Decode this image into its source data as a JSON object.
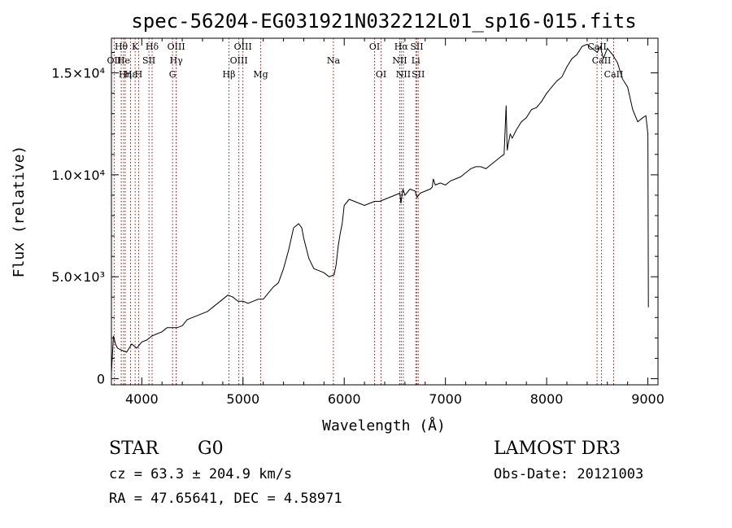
{
  "chart_data": {
    "type": "line",
    "title": "spec-56204-EG031921N032212L01_sp16-015.fits",
    "xlabel": "Wavelength (Å)",
    "ylabel": "Flux (relative)",
    "xlim": [
      3700,
      9100
    ],
    "ylim": [
      -300,
      16700
    ],
    "x_ticks": [
      {
        "value": 4000,
        "label": "4000"
      },
      {
        "value": 5000,
        "label": "5000"
      },
      {
        "value": 6000,
        "label": "6000"
      },
      {
        "value": 7000,
        "label": "7000"
      },
      {
        "value": 8000,
        "label": "8000"
      },
      {
        "value": 9000,
        "label": "9000"
      }
    ],
    "y_ticks": [
      {
        "value": 0,
        "label": "0"
      },
      {
        "value": 5000,
        "label": "5.0×10³"
      },
      {
        "value": 10000,
        "label": "1.0×10⁴"
      },
      {
        "value": 15000,
        "label": "1.5×10⁴"
      }
    ],
    "series": [
      {
        "name": "spectrum",
        "x": [
          3700,
          3720,
          3740,
          3760,
          3800,
          3850,
          3900,
          3950,
          4000,
          4050,
          4100,
          4150,
          4200,
          4250,
          4300,
          4350,
          4400,
          4450,
          4500,
          4550,
          4600,
          4650,
          4700,
          4750,
          4800,
          4850,
          4900,
          4950,
          5000,
          5050,
          5100,
          5150,
          5200,
          5250,
          5300,
          5350,
          5400,
          5450,
          5500,
          5550,
          5580,
          5600,
          5650,
          5700,
          5750,
          5800,
          5850,
          5900,
          5920,
          5940,
          5960,
          5980,
          6000,
          6050,
          6100,
          6150,
          6200,
          6250,
          6300,
          6350,
          6400,
          6450,
          6500,
          6550,
          6560,
          6580,
          6600,
          6650,
          6700,
          6720,
          6750,
          6800,
          6850,
          6870,
          6880,
          6900,
          6950,
          7000,
          7050,
          7100,
          7150,
          7200,
          7250,
          7300,
          7350,
          7400,
          7450,
          7500,
          7550,
          7580,
          7600,
          7610,
          7620,
          7640,
          7660,
          7700,
          7750,
          7800,
          7850,
          7900,
          7950,
          8000,
          8050,
          8100,
          8150,
          8200,
          8250,
          8300,
          8350,
          8400,
          8450,
          8500,
          8530,
          8560,
          8600,
          8650,
          8700,
          8750,
          8800,
          8850,
          8900,
          8950,
          8980,
          9000,
          9005
        ],
        "y": [
          300,
          2100,
          1700,
          1500,
          1400,
          1300,
          1700,
          1500,
          1800,
          1900,
          2100,
          2200,
          2300,
          2500,
          2500,
          2500,
          2600,
          2900,
          3000,
          3100,
          3200,
          3300,
          3500,
          3700,
          3900,
          4100,
          4000,
          3800,
          3800,
          3700,
          3800,
          3900,
          3900,
          4200,
          4500,
          4700,
          5400,
          6300,
          7400,
          7600,
          7400,
          6900,
          5900,
          5400,
          5300,
          5200,
          5000,
          5100,
          5600,
          6500,
          7100,
          7600,
          8500,
          8800,
          8700,
          8600,
          8500,
          8600,
          8700,
          8700,
          8800,
          8900,
          9000,
          9100,
          8600,
          9300,
          9000,
          9300,
          9200,
          8900,
          9100,
          9200,
          9300,
          9400,
          9800,
          9500,
          9600,
          9500,
          9700,
          9800,
          9900,
          10100,
          10300,
          10400,
          10400,
          10300,
          10500,
          10700,
          10900,
          11000,
          13400,
          11200,
          11500,
          12000,
          11800,
          12200,
          12600,
          12800,
          13200,
          13300,
          13600,
          14000,
          14300,
          14600,
          14800,
          15300,
          15700,
          15900,
          16300,
          16400,
          16200,
          16000,
          16300,
          15700,
          16200,
          15900,
          15500,
          14700,
          14300,
          13200,
          12600,
          12800,
          12900,
          12000,
          3500
        ]
      }
    ],
    "line_markers": [
      {
        "label": "OII",
        "x": 3727,
        "row": 2
      },
      {
        "label": "Hθ",
        "x": 3797,
        "row": 1
      },
      {
        "label": "He",
        "x": 3820,
        "row": 2
      },
      {
        "label": "Hη",
        "x": 3836,
        "row": 3
      },
      {
        "label": "Hε",
        "x": 3889,
        "row": 3
      },
      {
        "label": "K",
        "x": 3934,
        "row": 1
      },
      {
        "label": "SII",
        "x": 4071,
        "row": 2
      },
      {
        "label": "H",
        "x": 3969,
        "row": 3
      },
      {
        "label": "Hδ",
        "x": 4102,
        "row": 1
      },
      {
        "label": "OIII",
        "x": 4340,
        "row": 1
      },
      {
        "label": "Hγ",
        "x": 4340,
        "row": 2
      },
      {
        "label": "G",
        "x": 4304,
        "row": 3
      },
      {
        "label": "Hβ",
        "x": 4861,
        "row": 3
      },
      {
        "label": "OIII",
        "x": 4999,
        "row": 1
      },
      {
        "label": "OIII",
        "x": 4959,
        "row": 2
      },
      {
        "label": "Mg",
        "x": 5175,
        "row": 3
      },
      {
        "label": "Na",
        "x": 5893,
        "row": 2
      },
      {
        "label": "OI",
        "x": 6300,
        "row": 1
      },
      {
        "label": "OI",
        "x": 6364,
        "row": 3
      },
      {
        "label": "Hα",
        "x": 6563,
        "row": 1
      },
      {
        "label": "NII",
        "x": 6548,
        "row": 2
      },
      {
        "label": "NII",
        "x": 6584,
        "row": 3
      },
      {
        "label": "SII",
        "x": 6717,
        "row": 1
      },
      {
        "label": "Li",
        "x": 6707,
        "row": 2
      },
      {
        "label": "SII",
        "x": 6731,
        "row": 3
      },
      {
        "label": "CaII",
        "x": 8498,
        "row": 1
      },
      {
        "label": "CaII",
        "x": 8542,
        "row": 2
      },
      {
        "label": "CaII",
        "x": 8662,
        "row": 3
      }
    ],
    "grid": false,
    "legend": "none"
  },
  "footer": {
    "object_class": "STAR",
    "subclass": "G0",
    "survey": "LAMOST DR3",
    "cz": "cz = 63.3 ± 204.9 km/s",
    "obs_date": "Obs-Date: 20121003",
    "coords": "RA =  47.65641, DEC =   4.58971"
  },
  "colors": {
    "spectrum": "#000000",
    "line_marker": "#c00000",
    "axes": "#000000"
  }
}
